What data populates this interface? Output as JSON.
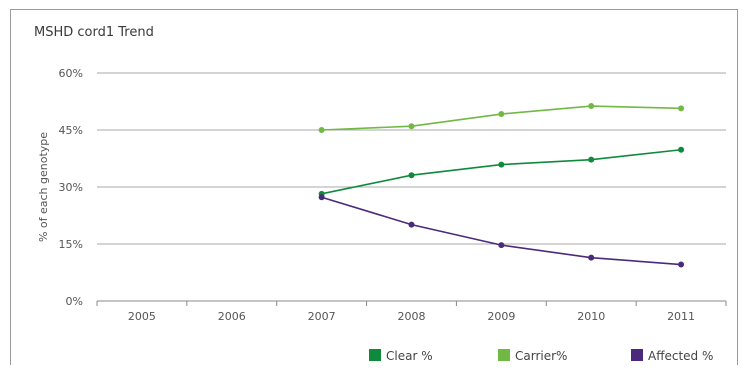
{
  "chart_data": {
    "type": "line",
    "title": "MSHD cord1 Trend",
    "ylabel": "% of each genotype",
    "xlabel": "",
    "categories": [
      "2005",
      "2006",
      "2007",
      "2008",
      "2009",
      "2010",
      "2011"
    ],
    "ylim": [
      0,
      60
    ],
    "yticks": [
      "0%",
      "15%",
      "30%",
      "45%",
      "60%"
    ],
    "ytick_values": [
      0,
      15,
      30,
      45,
      60
    ],
    "grid": true,
    "legend_position": "bottom",
    "series": [
      {
        "name": "Clear %",
        "color": "#0f8a3c",
        "values": [
          null,
          null,
          28.2,
          33.1,
          35.9,
          37.2,
          39.8
        ]
      },
      {
        "name": "Carrier%",
        "color": "#72b844",
        "values": [
          null,
          null,
          45.0,
          46.0,
          49.2,
          51.3,
          50.7
        ]
      },
      {
        "name": "Affected %",
        "color": "#4b2a7b",
        "values": [
          null,
          null,
          27.3,
          20.1,
          14.7,
          11.4,
          9.6
        ]
      }
    ]
  }
}
